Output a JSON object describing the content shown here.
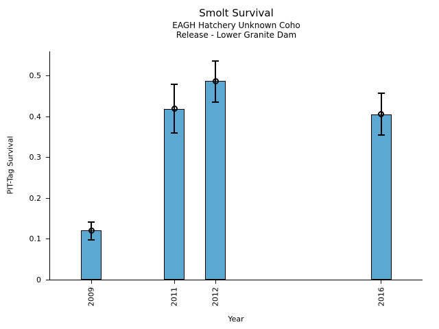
{
  "chart_data": {
    "type": "bar",
    "title": "Smolt Survival",
    "subtitle1": "EAGH Hatchery Unknown Coho",
    "subtitle2": "Release - Lower Granite Dam",
    "xlabel": "Year",
    "ylabel": "PIT-Tag Survival",
    "categories": [
      2009,
      2011,
      2012,
      2016
    ],
    "category_labels": [
      "2009",
      "2011",
      "2012",
      "2016"
    ],
    "values": [
      0.121,
      0.419,
      0.487,
      0.406
    ],
    "error_low": [
      0.098,
      0.36,
      0.436,
      0.354
    ],
    "error_high": [
      0.142,
      0.479,
      0.537,
      0.457
    ],
    "xlim": [
      2008,
      2017
    ],
    "ylim": [
      0,
      0.56
    ],
    "yticks": [
      0,
      0.1,
      0.2,
      0.3,
      0.4,
      0.5
    ],
    "ytick_labels": [
      "0",
      "0.1",
      "0.2",
      "0.3",
      "0.4",
      "0.5"
    ],
    "bar_width_years": 0.5,
    "bar_color": "#5BA8D2",
    "bar_edge_color": "#000000",
    "error_color": "#000000",
    "marker": "open-circle",
    "legend": "none",
    "grid": "off",
    "spines": [
      "left",
      "bottom"
    ]
  }
}
